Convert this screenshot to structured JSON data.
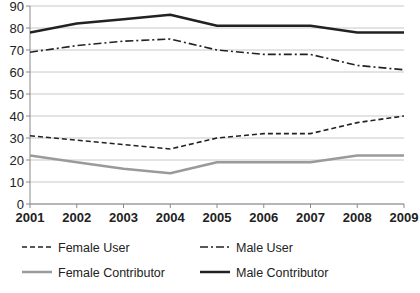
{
  "chart_data": {
    "type": "line",
    "x": [
      2001,
      2002,
      2003,
      2004,
      2005,
      2006,
      2007,
      2008,
      2009
    ],
    "xlim": [
      2001,
      2009
    ],
    "xticks": [
      2001,
      2002,
      2003,
      2004,
      2005,
      2006,
      2007,
      2008,
      2009
    ],
    "ylim": [
      0,
      90
    ],
    "yticks": [
      0,
      10,
      20,
      30,
      40,
      50,
      60,
      70,
      80,
      90
    ],
    "grid": true,
    "legend": "bottom",
    "series": [
      {
        "name": "Female User",
        "color": "#222222",
        "line_style": "dashed",
        "values": [
          31,
          29,
          27,
          25,
          30,
          32,
          32,
          37,
          40
        ]
      },
      {
        "name": "Male User",
        "color": "#222222",
        "line_style": "dashdot",
        "values": [
          69,
          72,
          74,
          75,
          70,
          68,
          68,
          63,
          61
        ]
      },
      {
        "name": "Female Contributor",
        "color": "#9a9a9a",
        "line_style": "solid",
        "values": [
          22,
          19,
          16,
          14,
          19,
          19,
          19,
          22,
          22
        ]
      },
      {
        "name": "Male Contributor",
        "color": "#222222",
        "line_style": "solid",
        "values": [
          78,
          82,
          84,
          86,
          81,
          81,
          81,
          78,
          78
        ]
      }
    ]
  }
}
